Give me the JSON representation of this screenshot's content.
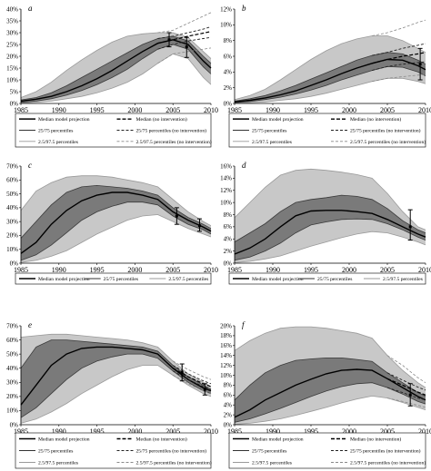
{
  "chart_data": [
    {
      "panel": "a",
      "type": "area",
      "xlim": [
        1985,
        2010
      ],
      "ylim": [
        0,
        40
      ],
      "yticks": [
        "0%",
        "5%",
        "10%",
        "15%",
        "20%",
        "25%",
        "30%",
        "35%",
        "40%"
      ],
      "xticks": [
        "1985",
        "1990",
        "1995",
        "2000",
        "2005",
        "2010"
      ],
      "x": [
        1985,
        1987,
        1989,
        1991,
        1993,
        1995,
        1997,
        1999,
        2001,
        2003,
        2005,
        2007,
        2009,
        2010
      ],
      "p975": [
        2.5,
        5,
        9,
        14,
        18.5,
        22.5,
        26,
        28.5,
        29.5,
        30,
        30,
        28,
        22,
        19
      ],
      "p75": [
        1.5,
        2.5,
        4.5,
        7.5,
        11,
        14.5,
        18,
        21.5,
        25,
        27.5,
        28.5,
        26.5,
        20,
        17
      ],
      "median": [
        1,
        1.8,
        3,
        5,
        7.5,
        10.5,
        14,
        18,
        22,
        25.5,
        27,
        25,
        18,
        15
      ],
      "p25": [
        0.5,
        1,
        2,
        3.5,
        5.5,
        8,
        11,
        14.5,
        19,
        23,
        25,
        23,
        15.5,
        12.5
      ],
      "p025": [
        0.2,
        0.5,
        1,
        2,
        3,
        4.5,
        6.5,
        9,
        12.5,
        17,
        21,
        19,
        11,
        8
      ],
      "no_intervention": {
        "x": [
          2003,
          2005,
          2007,
          2009,
          2010
        ],
        "median": [
          25.5,
          27,
          28.5,
          29.8,
          30.5
        ],
        "p75": [
          27.5,
          28.5,
          30,
          31.5,
          32.5
        ],
        "p25": [
          23,
          25,
          26.5,
          27.5,
          28
        ],
        "p975": [
          30,
          31,
          34,
          37,
          38.5
        ],
        "p025": [
          17,
          21,
          22,
          23,
          23.5
        ]
      },
      "error_bars": [
        {
          "x": 2004.5,
          "y": 27,
          "low": 24,
          "high": 30
        },
        {
          "x": 2006.8,
          "y": 24,
          "low": 19.5,
          "high": 28
        }
      ],
      "legend": [
        {
          "label": "Median model projection",
          "style": "solid-bold"
        },
        {
          "label": "Median (no intervention)",
          "style": "dash-bold"
        },
        {
          "label": "25/75 percentiles",
          "style": "solid"
        },
        {
          "label": "25/75 percentiles (no intervention)",
          "style": "dash"
        },
        {
          "label": "2.5/97.5 percentiles",
          "style": "solid-light"
        },
        {
          "label": "2.5/97.5 percentiles (no intervention)",
          "style": "dash-light"
        }
      ]
    },
    {
      "panel": "b",
      "type": "area",
      "xlim": [
        1985,
        2010
      ],
      "ylim": [
        0,
        12
      ],
      "yticks": [
        "0%",
        "2%",
        "4%",
        "6%",
        "8%",
        "10%",
        "12%"
      ],
      "xticks": [
        "1985",
        "1990",
        "1995",
        "2000",
        "2005",
        "2010"
      ],
      "x": [
        1985,
        1987,
        1989,
        1991,
        1993,
        1995,
        1997,
        1999,
        2001,
        2003,
        2005,
        2007,
        2009,
        2010
      ],
      "p975": [
        0.5,
        1,
        1.8,
        3,
        4.3,
        5.6,
        6.7,
        7.6,
        8.2,
        8.6,
        8.6,
        8,
        7,
        6.5
      ],
      "p75": [
        0.3,
        0.6,
        1,
        1.6,
        2.3,
        3.1,
        3.9,
        4.7,
        5.5,
        6.1,
        6.5,
        6.3,
        5.5,
        5
      ],
      "median": [
        0.2,
        0.4,
        0.7,
        1.1,
        1.6,
        2.3,
        3,
        3.8,
        4.5,
        5.1,
        5.6,
        5.5,
        4.8,
        4.3
      ],
      "p25": [
        0.1,
        0.25,
        0.5,
        0.8,
        1.2,
        1.7,
        2.3,
        3,
        3.6,
        4.2,
        4.7,
        4.6,
        4,
        3.5
      ],
      "p025": [
        0.05,
        0.1,
        0.2,
        0.4,
        0.6,
        0.9,
        1.3,
        1.8,
        2.3,
        2.8,
        3.2,
        3.2,
        2.8,
        2.5
      ],
      "no_intervention": {
        "x": [
          2003,
          2005,
          2007,
          2009,
          2010
        ],
        "median": [
          5.1,
          5.6,
          6,
          6.3,
          6.5
        ],
        "p75": [
          6.1,
          6.5,
          7,
          7.4,
          7.6
        ],
        "p25": [
          4.2,
          4.7,
          5,
          5.2,
          5.3
        ],
        "p975": [
          8.6,
          9,
          9.6,
          10.3,
          10.6
        ],
        "p025": [
          2.8,
          3.2,
          3.4,
          3.6,
          3.7
        ]
      },
      "error_bars": [
        {
          "x": 2009.3,
          "y": 5,
          "low": 3,
          "high": 7
        }
      ],
      "legend": [
        {
          "label": "Median model projection",
          "style": "solid-bold"
        },
        {
          "label": "Median (no intervention)",
          "style": "dash-bold"
        },
        {
          "label": "25/75 percentiles",
          "style": "solid"
        },
        {
          "label": "25/75 percentiles (no intervention)",
          "style": "dash"
        },
        {
          "label": "2.5/97.5 percentiles",
          "style": "solid-light"
        },
        {
          "label": "2.5/97.5 percentiles (no intervention)",
          "style": "dash-light"
        }
      ]
    },
    {
      "panel": "c",
      "type": "area",
      "xlim": [
        1985,
        2010
      ],
      "ylim": [
        0,
        70
      ],
      "yticks": [
        "0%",
        "10%",
        "20%",
        "30%",
        "40%",
        "50%",
        "60%",
        "70%"
      ],
      "xticks": [
        "1985",
        "1990",
        "1995",
        "2000",
        "2005",
        "2010"
      ],
      "x": [
        1985,
        1987,
        1989,
        1991,
        1993,
        1995,
        1997,
        1999,
        2001,
        2003,
        2005,
        2007,
        2009,
        2010
      ],
      "p975": [
        38,
        52,
        58,
        62,
        63,
        63,
        62,
        60,
        58,
        55,
        46,
        37,
        30,
        27
      ],
      "p75": [
        18,
        30,
        42,
        51,
        55,
        56,
        55,
        54,
        52,
        49,
        40,
        33,
        28,
        25
      ],
      "median": [
        7,
        15,
        28,
        38,
        45,
        49,
        51,
        51,
        49,
        46,
        37,
        31,
        26,
        23
      ],
      "p25": [
        2,
        6,
        13,
        22,
        31,
        37,
        41,
        44,
        44,
        42,
        34,
        28,
        24,
        21
      ],
      "p025": [
        0.5,
        2,
        5,
        9,
        15,
        21,
        26,
        31,
        34,
        35,
        30,
        25,
        21,
        19
      ],
      "error_bars": [
        {
          "x": 2005.5,
          "y": 34,
          "low": 28,
          "high": 40
        },
        {
          "x": 2008.5,
          "y": 27,
          "low": 23,
          "high": 32
        }
      ],
      "legend": [
        {
          "label": "Median model projection",
          "style": "solid-bold"
        },
        {
          "label": "25/75 percentiles",
          "style": "solid"
        },
        {
          "label": "2.5/97.5 percentiles",
          "style": "solid-light"
        }
      ]
    },
    {
      "panel": "d",
      "type": "area",
      "xlim": [
        1985,
        2010
      ],
      "ylim": [
        0,
        16
      ],
      "yticks": [
        "0%",
        "2%",
        "4%",
        "6%",
        "8%",
        "10%",
        "12%",
        "14%",
        "16%"
      ],
      "xticks": [
        "1985",
        "1990",
        "1995",
        "2000",
        "2005",
        "2010"
      ],
      "x": [
        1985,
        1987,
        1989,
        1991,
        1993,
        1995,
        1997,
        1999,
        2001,
        2003,
        2005,
        2007,
        2009,
        2010
      ],
      "p975": [
        7.5,
        10,
        12.5,
        14.5,
        15.3,
        15.5,
        15.3,
        15,
        14.6,
        14,
        11.5,
        8.5,
        6,
        5.5
      ],
      "p75": [
        3.5,
        5,
        6.5,
        8.5,
        10,
        10.5,
        10.8,
        11.2,
        11,
        10.5,
        9,
        7,
        5.5,
        5
      ],
      "median": [
        1.5,
        2.5,
        4,
        6,
        7.8,
        8.6,
        8.7,
        8.7,
        8.5,
        8.2,
        7.2,
        6,
        4.8,
        4.3
      ],
      "p25": [
        0.5,
        1,
        2,
        3.3,
        5,
        6.3,
        6.8,
        7.2,
        7.3,
        7.2,
        6.5,
        5.5,
        4.3,
        3.8
      ],
      "p025": [
        0.1,
        0.3,
        0.7,
        1.2,
        2,
        2.8,
        3.5,
        4.2,
        4.8,
        5.2,
        5,
        4.3,
        3.5,
        3
      ],
      "error_bars": [
        {
          "x": 2008,
          "y": 6,
          "low": 3.8,
          "high": 8.8
        }
      ],
      "legend": [
        {
          "label": "Median model projection",
          "style": "solid-bold"
        },
        {
          "label": "25/75 percentiles",
          "style": "solid"
        },
        {
          "label": "2.5/97.5 percentiles",
          "style": "solid-light"
        }
      ]
    },
    {
      "panel": "e",
      "type": "area",
      "xlim": [
        1985,
        2010
      ],
      "ylim": [
        0,
        70
      ],
      "yticks": [
        "0%",
        "10%",
        "20%",
        "30%",
        "40%",
        "50%",
        "60%",
        "70%"
      ],
      "xticks": [
        "1985",
        "1990",
        "1995",
        "2000",
        "2005",
        "2010"
      ],
      "x": [
        1985,
        1987,
        1989,
        1991,
        1993,
        1995,
        1997,
        1999,
        2001,
        2003,
        2005,
        2007,
        2009,
        2010
      ],
      "p975": [
        62,
        63,
        64,
        64,
        63,
        62,
        61,
        60,
        58,
        55,
        45,
        36,
        30,
        27
      ],
      "p75": [
        40,
        55,
        60,
        60,
        59,
        58,
        57,
        56,
        55,
        52,
        42,
        34,
        28,
        25
      ],
      "median": [
        14,
        28,
        42,
        50,
        54,
        55,
        55,
        54,
        53,
        50,
        40,
        32,
        26,
        24
      ],
      "p25": [
        5,
        12,
        22,
        32,
        40,
        45,
        48,
        50,
        50,
        47,
        38,
        30,
        24,
        22
      ],
      "p025": [
        1,
        4,
        9,
        15,
        22,
        28,
        34,
        39,
        42,
        42,
        35,
        28,
        22,
        20
      ],
      "no_intervention": {
        "x": [
          2005,
          2007,
          2009,
          2010
        ],
        "median": [
          40,
          34,
          29,
          27
        ],
        "p75": [
          42,
          36,
          31,
          29
        ],
        "p25": [
          38,
          32,
          27,
          25
        ],
        "p975": [
          45,
          39,
          34,
          32
        ],
        "p025": [
          35,
          29,
          24,
          22
        ]
      },
      "error_bars": [
        {
          "x": 2006.2,
          "y": 37,
          "low": 31,
          "high": 43
        },
        {
          "x": 2009.2,
          "y": 25,
          "low": 21,
          "high": 29
        }
      ],
      "legend": [
        {
          "label": "Median model projection",
          "style": "solid-bold"
        },
        {
          "label": "Median (no intervention)",
          "style": "dash-bold"
        },
        {
          "label": "25/75 percentiles",
          "style": "solid"
        },
        {
          "label": "25/75 percentiles (no intervention)",
          "style": "dash"
        },
        {
          "label": "2.5/97.5 percentiles",
          "style": "solid-light"
        },
        {
          "label": "2.5/97.5 percentiles (no intervention)",
          "style": "dash-light"
        }
      ]
    },
    {
      "panel": "f",
      "type": "area",
      "xlim": [
        1985,
        2010
      ],
      "ylim": [
        0,
        20
      ],
      "yticks": [
        "0%",
        "2%",
        "4%",
        "6%",
        "8%",
        "10%",
        "12%",
        "14%",
        "16%",
        "18%",
        "20%"
      ],
      "xticks": [
        "1985",
        "1990",
        "1995",
        "2000",
        "2005",
        "2010"
      ],
      "x": [
        1985,
        1987,
        1989,
        1991,
        1993,
        1995,
        1997,
        1999,
        2001,
        2003,
        2005,
        2007,
        2009,
        2010
      ],
      "p975": [
        15,
        17,
        18.5,
        19.5,
        19.8,
        19.8,
        19.5,
        19,
        18.5,
        17.5,
        14,
        11,
        8.5,
        7.5
      ],
      "p75": [
        5,
        8,
        10.5,
        12,
        13,
        13.3,
        13.5,
        13.5,
        13.2,
        12.8,
        10.5,
        8.5,
        6.5,
        5.8
      ],
      "median": [
        1.5,
        3,
        5,
        6.5,
        8,
        9.2,
        10.3,
        11,
        11.2,
        11,
        9.3,
        7.5,
        5.7,
        5
      ],
      "p25": [
        0.5,
        1.2,
        2.2,
        3.3,
        4.5,
        5.7,
        6.8,
        7.7,
        8.3,
        8.5,
        7.5,
        6.2,
        4.7,
        4.2
      ],
      "p025": [
        0.1,
        0.3,
        0.7,
        1.2,
        1.9,
        2.7,
        3.5,
        4.4,
        5.2,
        5.8,
        5.4,
        4.5,
        3.5,
        3
      ],
      "no_intervention": {
        "x": [
          2005,
          2007,
          2009,
          2010
        ],
        "median": [
          9.3,
          8,
          6.6,
          6
        ],
        "p75": [
          10.5,
          9,
          7.6,
          7
        ],
        "p25": [
          7.5,
          6.5,
          5.4,
          5
        ],
        "p975": [
          14,
          12,
          9.5,
          8.5
        ],
        "p025": [
          5.4,
          4.7,
          3.9,
          3.5
        ]
      },
      "error_bars": [
        {
          "x": 2008,
          "y": 6,
          "low": 3.8,
          "high": 8.3
        }
      ],
      "legend": [
        {
          "label": "Median model projection",
          "style": "solid-bold"
        },
        {
          "label": "Median (no intervention)",
          "style": "dash-bold"
        },
        {
          "label": "25/75 percentiles",
          "style": "solid"
        },
        {
          "label": "25/75 percentiles (no intervention)",
          "style": "dash"
        },
        {
          "label": "2.5/97.5 percentiles",
          "style": "solid-light"
        },
        {
          "label": "2.5/97.5 percentiles (no intervention)",
          "style": "dash-light"
        }
      ]
    }
  ],
  "colors": {
    "outer_band": "#c8c8c8",
    "inner_band": "#7a7a7a",
    "median_line": "#000000",
    "percentile_line": "#3a3a3a",
    "outer_line": "#9a9a9a",
    "no_intervention_dash": "#000000"
  }
}
